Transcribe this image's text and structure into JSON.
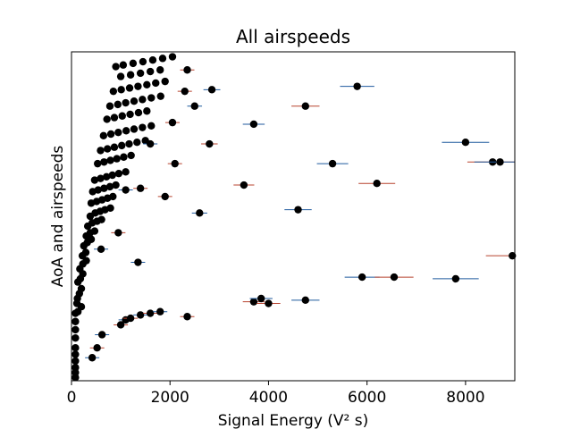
{
  "chart_data": {
    "type": "scatter",
    "title": "All airspeeds",
    "xlabel": "Signal Energy (V² s)",
    "ylabel": "AoA and airspeeds",
    "xlim": [
      0,
      9000
    ],
    "ylim": [
      0,
      1
    ],
    "xticks": [
      0,
      2000,
      4000,
      6000,
      8000
    ],
    "xtick_labels": [
      "0",
      "2000",
      "4000",
      "6000",
      "8000"
    ],
    "y_tick_labels_shown": false,
    "grid": false,
    "legend": "none",
    "marker_color": "#000000",
    "error_bar_colors": [
      "#1f5a9e",
      "#b8432f"
    ],
    "series": [
      {
        "points": [
          {
            "x": 80,
            "y": 0.01
          },
          {
            "x": 80,
            "y": 0.025
          },
          {
            "x": 80,
            "y": 0.04
          },
          {
            "x": 80,
            "y": 0.06
          },
          {
            "x": 80,
            "y": 0.08
          },
          {
            "x": 80,
            "y": 0.1
          },
          {
            "x": 80,
            "y": 0.13
          },
          {
            "x": 80,
            "y": 0.155
          },
          {
            "x": 80,
            "y": 0.18
          },
          {
            "x": 80,
            "y": 0.205
          },
          {
            "x": 130,
            "y": 0.21
          },
          {
            "x": 200,
            "y": 0.225
          },
          {
            "x": 110,
            "y": 0.235
          },
          {
            "x": 120,
            "y": 0.25
          },
          {
            "x": 160,
            "y": 0.265
          },
          {
            "x": 200,
            "y": 0.28
          },
          {
            "x": 130,
            "y": 0.3
          },
          {
            "x": 180,
            "y": 0.31
          },
          {
            "x": 230,
            "y": 0.325
          },
          {
            "x": 170,
            "y": 0.34
          },
          {
            "x": 230,
            "y": 0.355
          },
          {
            "x": 300,
            "y": 0.365
          },
          {
            "x": 220,
            "y": 0.38
          },
          {
            "x": 290,
            "y": 0.39
          },
          {
            "x": 250,
            "y": 0.41
          },
          {
            "x": 320,
            "y": 0.42
          },
          {
            "x": 400,
            "y": 0.43
          },
          {
            "x": 300,
            "y": 0.44
          },
          {
            "x": 380,
            "y": 0.45
          },
          {
            "x": 470,
            "y": 0.455
          },
          {
            "x": 330,
            "y": 0.47
          },
          {
            "x": 420,
            "y": 0.48
          },
          {
            "x": 520,
            "y": 0.485
          },
          {
            "x": 610,
            "y": 0.49
          },
          {
            "x": 380,
            "y": 0.5
          },
          {
            "x": 480,
            "y": 0.51
          },
          {
            "x": 580,
            "y": 0.515
          },
          {
            "x": 680,
            "y": 0.52
          },
          {
            "x": 790,
            "y": 0.525
          },
          {
            "x": 400,
            "y": 0.54
          },
          {
            "x": 510,
            "y": 0.545
          },
          {
            "x": 620,
            "y": 0.55
          },
          {
            "x": 730,
            "y": 0.555
          },
          {
            "x": 840,
            "y": 0.56
          },
          {
            "x": 430,
            "y": 0.575
          },
          {
            "x": 540,
            "y": 0.58
          },
          {
            "x": 660,
            "y": 0.585
          },
          {
            "x": 780,
            "y": 0.59
          },
          {
            "x": 900,
            "y": 0.595
          },
          {
            "x": 470,
            "y": 0.61
          },
          {
            "x": 590,
            "y": 0.615
          },
          {
            "x": 710,
            "y": 0.62
          },
          {
            "x": 830,
            "y": 0.625
          },
          {
            "x": 960,
            "y": 0.63
          },
          {
            "x": 1100,
            "y": 0.635
          },
          {
            "x": 530,
            "y": 0.66
          },
          {
            "x": 660,
            "y": 0.665
          },
          {
            "x": 790,
            "y": 0.67
          },
          {
            "x": 920,
            "y": 0.675
          },
          {
            "x": 1060,
            "y": 0.68
          },
          {
            "x": 1210,
            "y": 0.685
          },
          {
            "x": 590,
            "y": 0.7
          },
          {
            "x": 730,
            "y": 0.705
          },
          {
            "x": 870,
            "y": 0.71
          },
          {
            "x": 1020,
            "y": 0.715
          },
          {
            "x": 1170,
            "y": 0.72
          },
          {
            "x": 1330,
            "y": 0.725
          },
          {
            "x": 1500,
            "y": 0.73
          },
          {
            "x": 650,
            "y": 0.745
          },
          {
            "x": 800,
            "y": 0.75
          },
          {
            "x": 950,
            "y": 0.755
          },
          {
            "x": 1110,
            "y": 0.76
          },
          {
            "x": 1270,
            "y": 0.765
          },
          {
            "x": 1440,
            "y": 0.77
          },
          {
            "x": 1620,
            "y": 0.775
          },
          {
            "x": 720,
            "y": 0.795
          },
          {
            "x": 870,
            "y": 0.8
          },
          {
            "x": 1030,
            "y": 0.805
          },
          {
            "x": 1190,
            "y": 0.81
          },
          {
            "x": 1360,
            "y": 0.815
          },
          {
            "x": 1530,
            "y": 0.82
          },
          {
            "x": 780,
            "y": 0.835
          },
          {
            "x": 940,
            "y": 0.84
          },
          {
            "x": 1100,
            "y": 0.845
          },
          {
            "x": 1270,
            "y": 0.85
          },
          {
            "x": 1440,
            "y": 0.855
          },
          {
            "x": 1620,
            "y": 0.86
          },
          {
            "x": 1810,
            "y": 0.865
          },
          {
            "x": 850,
            "y": 0.88
          },
          {
            "x": 1010,
            "y": 0.885
          },
          {
            "x": 1180,
            "y": 0.89
          },
          {
            "x": 1350,
            "y": 0.895
          },
          {
            "x": 1530,
            "y": 0.9
          },
          {
            "x": 1710,
            "y": 0.905
          },
          {
            "x": 1900,
            "y": 0.91
          },
          {
            "x": 1000,
            "y": 0.925
          },
          {
            "x": 1200,
            "y": 0.93
          },
          {
            "x": 1400,
            "y": 0.935
          },
          {
            "x": 1600,
            "y": 0.94
          },
          {
            "x": 1800,
            "y": 0.945
          },
          {
            "x": 900,
            "y": 0.955
          },
          {
            "x": 1050,
            "y": 0.96
          },
          {
            "x": 1250,
            "y": 0.965
          },
          {
            "x": 1450,
            "y": 0.97
          },
          {
            "x": 1650,
            "y": 0.975
          },
          {
            "x": 1850,
            "y": 0.98
          },
          {
            "x": 2050,
            "y": 0.985
          }
        ]
      },
      {
        "points": [
          {
            "x": 420,
            "y": 0.07
          },
          {
            "x": 520,
            "y": 0.1
          },
          {
            "x": 620,
            "y": 0.14
          },
          {
            "x": 1000,
            "y": 0.17
          },
          {
            "x": 1100,
            "y": 0.185
          },
          {
            "x": 1200,
            "y": 0.19
          },
          {
            "x": 1400,
            "y": 0.2
          },
          {
            "x": 1600,
            "y": 0.205
          },
          {
            "x": 1800,
            "y": 0.21
          },
          {
            "x": 2350,
            "y": 0.195
          },
          {
            "x": 600,
            "y": 0.4
          },
          {
            "x": 950,
            "y": 0.45
          },
          {
            "x": 1350,
            "y": 0.36
          },
          {
            "x": 1900,
            "y": 0.56
          },
          {
            "x": 2600,
            "y": 0.51
          },
          {
            "x": 3500,
            "y": 0.595
          },
          {
            "x": 1100,
            "y": 0.58
          },
          {
            "x": 1400,
            "y": 0.585
          },
          {
            "x": 4600,
            "y": 0.52
          },
          {
            "x": 6200,
            "y": 0.6
          },
          {
            "x": 5300,
            "y": 0.66
          },
          {
            "x": 2100,
            "y": 0.66
          },
          {
            "x": 1600,
            "y": 0.72
          },
          {
            "x": 2800,
            "y": 0.72
          },
          {
            "x": 3700,
            "y": 0.78
          },
          {
            "x": 2050,
            "y": 0.785
          },
          {
            "x": 2500,
            "y": 0.835
          },
          {
            "x": 2300,
            "y": 0.88
          },
          {
            "x": 2850,
            "y": 0.885
          },
          {
            "x": 4750,
            "y": 0.835
          },
          {
            "x": 5800,
            "y": 0.895
          },
          {
            "x": 2350,
            "y": 0.945
          },
          {
            "x": 8000,
            "y": 0.725
          },
          {
            "x": 8550,
            "y": 0.665
          },
          {
            "x": 8700,
            "y": 0.665
          },
          {
            "x": 8950,
            "y": 0.38
          },
          {
            "x": 5900,
            "y": 0.315
          },
          {
            "x": 6550,
            "y": 0.315
          },
          {
            "x": 7800,
            "y": 0.31
          },
          {
            "x": 3700,
            "y": 0.24
          },
          {
            "x": 3850,
            "y": 0.25
          },
          {
            "x": 4000,
            "y": 0.235
          },
          {
            "x": 4750,
            "y": 0.245
          }
        ]
      }
    ]
  }
}
